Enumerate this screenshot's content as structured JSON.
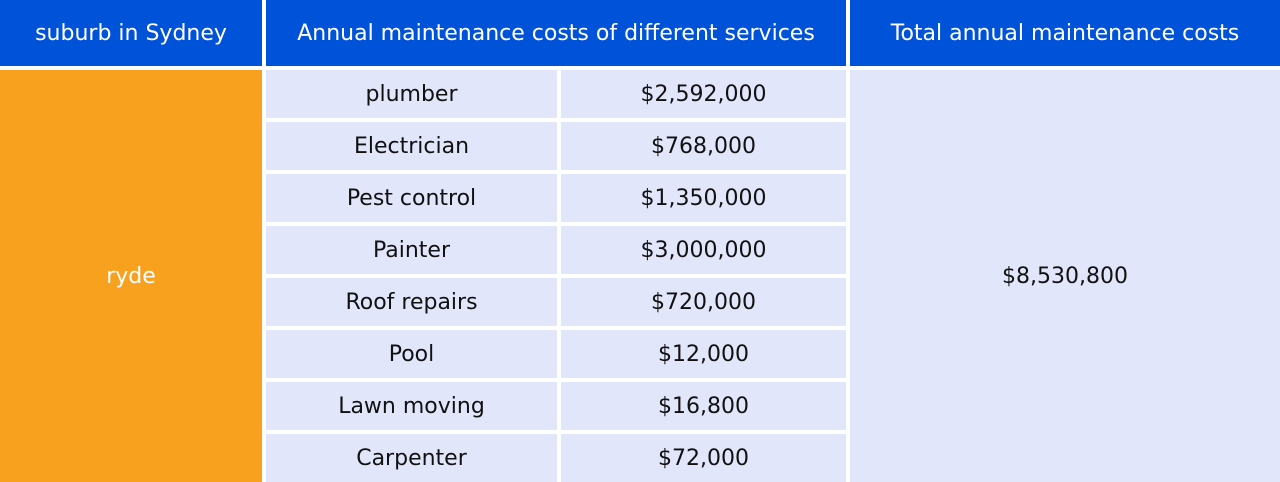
{
  "table": {
    "headers": {
      "suburb": "suburb in Sydney",
      "annual_costs": "Annual maintenance costs of different services",
      "total": "Total annual maintenance costs"
    },
    "suburb": "ryde",
    "rows": [
      {
        "service": "plumber",
        "cost": "$2,592,000"
      },
      {
        "service": "Electrician",
        "cost": "$768,000"
      },
      {
        "service": "Pest control",
        "cost": "$1,350,000"
      },
      {
        "service": "Painter",
        "cost": "$3,000,000"
      },
      {
        "service": "Roof repairs",
        "cost": "$720,000"
      },
      {
        "service": "Pool",
        "cost": "$12,000"
      },
      {
        "service": "Lawn moving",
        "cost": "$16,800"
      },
      {
        "service": "Carpenter",
        "cost": "$72,000"
      }
    ],
    "total": "$8,530,800"
  },
  "colors": {
    "header_bg": "#0052D9",
    "suburb_bg": "#F7A11F",
    "body_bg": "#E2E6FB"
  }
}
